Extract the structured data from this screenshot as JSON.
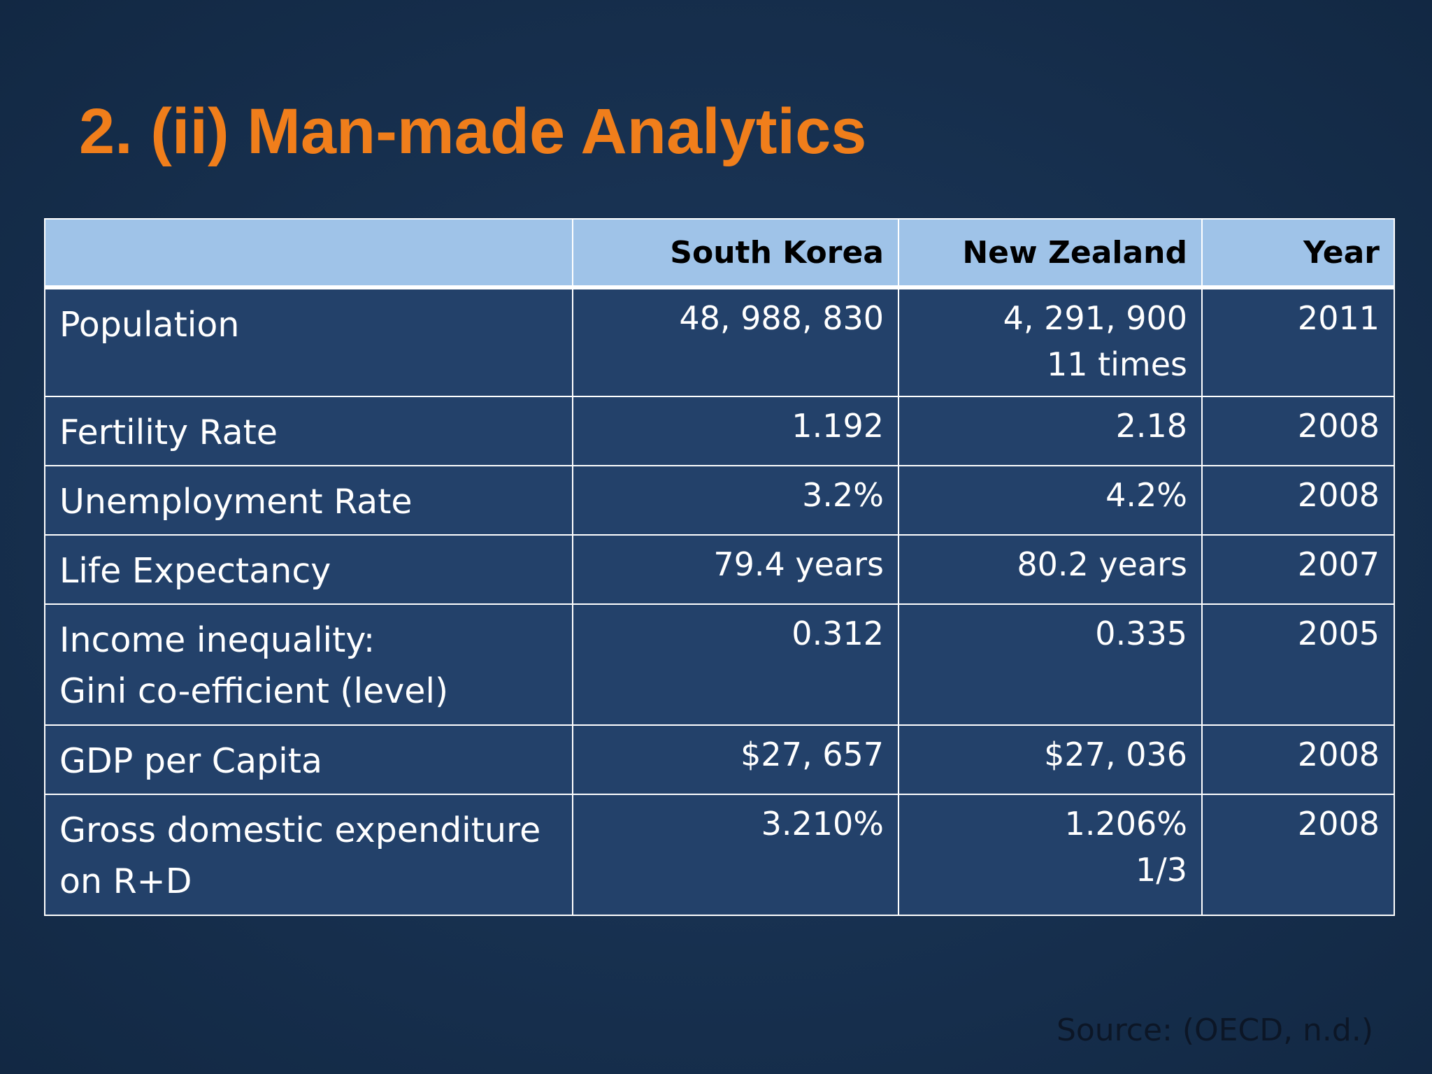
{
  "slide": {
    "title": "2. (ii) Man-made Analytics",
    "source": "Source: (OECD, n.d.)"
  },
  "table": {
    "headers": [
      "",
      "South Korea",
      "New Zealand",
      "Year"
    ],
    "rows": [
      {
        "label": [
          "Population"
        ],
        "south_korea": [
          "48, 988, 830"
        ],
        "new_zealand": [
          "4, 291, 900",
          "11 times"
        ],
        "year": "2011"
      },
      {
        "label": [
          "Fertility Rate"
        ],
        "south_korea": [
          "1.192"
        ],
        "new_zealand": [
          "2.18"
        ],
        "year": "2008"
      },
      {
        "label": [
          "Unemployment Rate"
        ],
        "south_korea": [
          "3.2%"
        ],
        "new_zealand": [
          "4.2%"
        ],
        "year": "2008"
      },
      {
        "label": [
          "Life Expectancy"
        ],
        "south_korea": [
          "79.4 years"
        ],
        "new_zealand": [
          "80.2 years"
        ],
        "year": "2007"
      },
      {
        "label": [
          "Income inequality:",
          "Gini co-efficient (level)"
        ],
        "south_korea": [
          "0.312"
        ],
        "new_zealand": [
          "0.335"
        ],
        "year": "2005"
      },
      {
        "label": [
          "GDP per Capita"
        ],
        "south_korea": [
          "$27, 657"
        ],
        "new_zealand": [
          "$27, 036"
        ],
        "year": "2008"
      },
      {
        "label": [
          "Gross domestic expenditure",
          "on R+D"
        ],
        "south_korea": [
          "3.210%"
        ],
        "new_zealand": [
          "1.206%",
          "1/3"
        ],
        "year": "2008"
      }
    ]
  }
}
